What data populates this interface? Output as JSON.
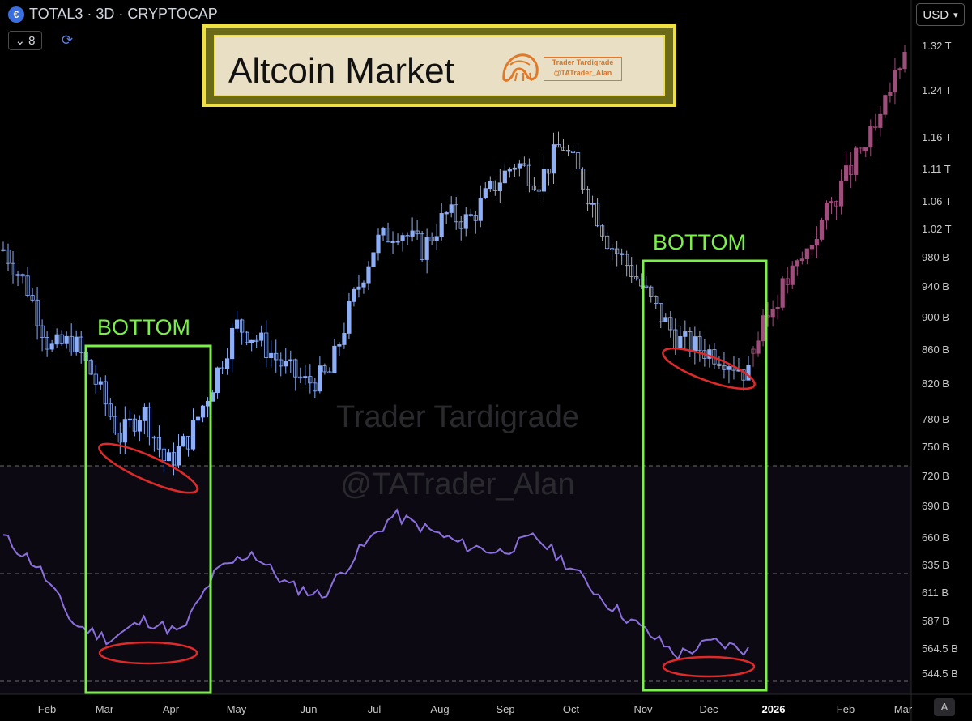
{
  "header": {
    "symbol": "TOTAL3 · 3D · CRYPTOCAP",
    "interval_badge": "8",
    "currency": "USD",
    "auto_label": "A"
  },
  "banner": {
    "title": "Altcoin Market",
    "badge_line1": "Trader Tardigrade",
    "badge_line2": "@TATrader_Alan"
  },
  "watermark": {
    "line1": "Trader Tardigrade",
    "line2": "@TATrader_Alan"
  },
  "annotations": {
    "left_box_label": "BOTTOM",
    "right_box_label": "BOTTOM"
  },
  "colors": {
    "candle": "#8eaef5",
    "candle_projection": "#9b4f7a",
    "oscillator": "#8b6fdc",
    "box": "#7cf04a",
    "ellipse": "#e02a2a",
    "banner_border": "#f0e040"
  },
  "chart_data": {
    "type": "candlestick",
    "x_axis": [
      "Feb",
      "Mar",
      "Apr",
      "May",
      "Jun",
      "Jul",
      "Aug",
      "Sep",
      "Oct",
      "Nov",
      "Dec",
      "2026",
      "Feb",
      "Mar"
    ],
    "y_axis": [
      "1.32 T",
      "1.24 T",
      "1.16 T",
      "1.11 T",
      "1.06 T",
      "1.02 T",
      "980 B",
      "940 B",
      "900 B",
      "860 B",
      "820 B",
      "780 B",
      "750 B",
      "720 B",
      "690 B",
      "660 B",
      "635 B",
      "611 B",
      "587 B",
      "564.5 B",
      "544.5 B"
    ],
    "y_scale": "log",
    "price_series": [
      {
        "t": "Feb",
        "close": 990
      },
      {
        "t": "Feb",
        "close": 940
      },
      {
        "t": "Feb",
        "close": 860
      },
      {
        "t": "Mar",
        "close": 870
      },
      {
        "t": "Mar",
        "close": 820
      },
      {
        "t": "Mar",
        "close": 760
      },
      {
        "t": "Apr",
        "close": 790
      },
      {
        "t": "Apr",
        "close": 730
      },
      {
        "t": "Apr",
        "close": 760
      },
      {
        "t": "May",
        "close": 820
      },
      {
        "t": "May",
        "close": 890
      },
      {
        "t": "May",
        "close": 870
      },
      {
        "t": "Jun",
        "close": 840
      },
      {
        "t": "Jun",
        "close": 820
      },
      {
        "t": "Jun",
        "close": 830
      },
      {
        "t": "Jul",
        "close": 920
      },
      {
        "t": "Jul",
        "close": 1000
      },
      {
        "t": "Jul",
        "close": 1020
      },
      {
        "t": "Aug",
        "close": 990
      },
      {
        "t": "Aug",
        "close": 1040
      },
      {
        "t": "Aug",
        "close": 1030
      },
      {
        "t": "Sep",
        "close": 1080
      },
      {
        "t": "Sep",
        "close": 1120
      },
      {
        "t": "Sep",
        "close": 1090
      },
      {
        "t": "Oct",
        "close": 1150
      },
      {
        "t": "Oct",
        "close": 1080
      },
      {
        "t": "Oct",
        "close": 1000
      },
      {
        "t": "Nov",
        "close": 960
      },
      {
        "t": "Nov",
        "close": 910
      },
      {
        "t": "Nov",
        "close": 870
      },
      {
        "t": "Dec",
        "close": 860
      },
      {
        "t": "Dec",
        "close": 850
      },
      {
        "t": "Dec",
        "close": 830
      }
    ],
    "projection_series": [
      {
        "t": "Dec",
        "close": 860
      },
      {
        "t": "2026",
        "close": 930
      },
      {
        "t": "2026",
        "close": 980
      },
      {
        "t": "Feb",
        "close": 1050
      },
      {
        "t": "Feb",
        "close": 1120
      },
      {
        "t": "Feb",
        "close": 1180
      },
      {
        "t": "Mar",
        "close": 1320
      }
    ],
    "oscillator_series": [
      {
        "t": "Feb",
        "value": 0.62
      },
      {
        "t": "Feb",
        "value": 0.48
      },
      {
        "t": "Mar",
        "value": 0.22
      },
      {
        "t": "Mar",
        "value": 0.15
      },
      {
        "t": "Apr",
        "value": 0.24
      },
      {
        "t": "Apr",
        "value": 0.18
      },
      {
        "t": "May",
        "value": 0.46
      },
      {
        "t": "May",
        "value": 0.55
      },
      {
        "t": "Jun",
        "value": 0.4
      },
      {
        "t": "Jun",
        "value": 0.35
      },
      {
        "t": "Jul",
        "value": 0.55
      },
      {
        "t": "Jul",
        "value": 0.72
      },
      {
        "t": "Aug",
        "value": 0.65
      },
      {
        "t": "Aug",
        "value": 0.58
      },
      {
        "t": "Sep",
        "value": 0.55
      },
      {
        "t": "Sep",
        "value": 0.62
      },
      {
        "t": "Oct",
        "value": 0.48
      },
      {
        "t": "Oct",
        "value": 0.32
      },
      {
        "t": "Nov",
        "value": 0.2
      },
      {
        "t": "Nov",
        "value": 0.08
      },
      {
        "t": "Dec",
        "value": 0.14
      },
      {
        "t": "Dec",
        "value": 0.1
      }
    ]
  }
}
